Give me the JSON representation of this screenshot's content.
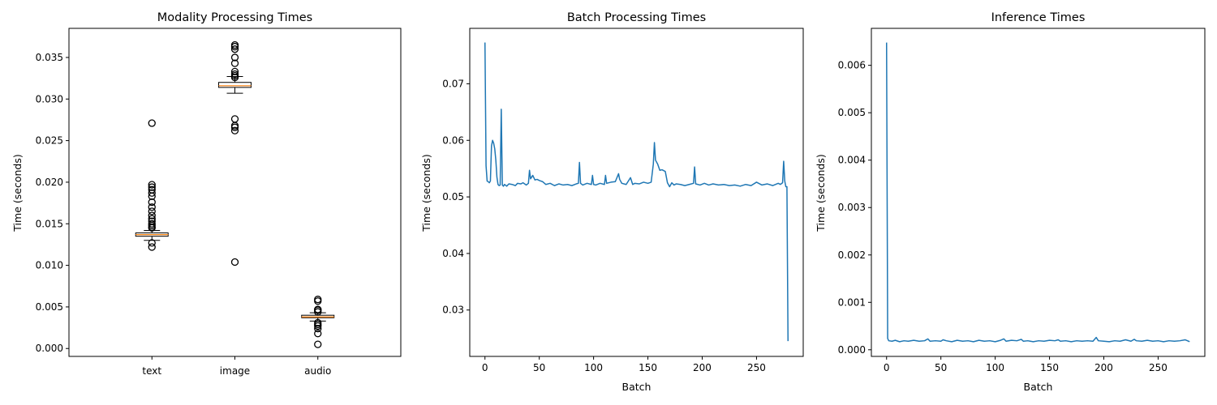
{
  "chart_data": [
    {
      "type": "boxplot",
      "title": "Modality Processing Times",
      "xlabel": "",
      "ylabel": "Time (seconds)",
      "categories": [
        "text",
        "image",
        "audio"
      ],
      "ylim": [
        -0.00095,
        0.0385
      ],
      "yticks": [
        0.0,
        0.005,
        0.01,
        0.015,
        0.02,
        0.025,
        0.03,
        0.035
      ],
      "yticklabels": [
        "0.000",
        "0.005",
        "0.010",
        "0.015",
        "0.020",
        "0.025",
        "0.030",
        "0.035"
      ],
      "boxes": [
        {
          "q1": 0.0135,
          "median": 0.0137,
          "q3": 0.0139,
          "whisker_low": 0.013,
          "whisker_high": 0.0142,
          "outliers": [
            0.0271,
            0.0197,
            0.0194,
            0.0191,
            0.0187,
            0.0183,
            0.0176,
            0.017,
            0.0165,
            0.016,
            0.0156,
            0.0153,
            0.015,
            0.0148,
            0.0146,
            0.0145,
            0.0127,
            0.0122
          ]
        },
        {
          "q1": 0.0314,
          "median": 0.0316,
          "q3": 0.032,
          "whisker_low": 0.0307,
          "whisker_high": 0.0327,
          "outliers": [
            0.0365,
            0.0363,
            0.036,
            0.035,
            0.0343,
            0.0333,
            0.033,
            0.0328,
            0.0326,
            0.0276,
            0.0268,
            0.0266,
            0.0262,
            0.0104
          ]
        },
        {
          "q1": 0.0037,
          "median": 0.0038,
          "q3": 0.004,
          "whisker_low": 0.0033,
          "whisker_high": 0.0043,
          "outliers": [
            0.0059,
            0.0057,
            0.0047,
            0.0046,
            0.0044,
            0.0031,
            0.0029,
            0.0027,
            0.0024,
            0.0018,
            0.0005
          ]
        }
      ],
      "box_color": "#ffffff",
      "median_color": "#ff7f0e"
    },
    {
      "type": "line",
      "title": "Batch Processing Times",
      "xlabel": "Batch",
      "ylabel": "Time (seconds)",
      "xlim": [
        -14,
        293
      ],
      "ylim": [
        0.0218,
        0.0798
      ],
      "xticks": [
        0,
        50,
        100,
        150,
        200,
        250
      ],
      "xticklabels": [
        "0",
        "50",
        "100",
        "150",
        "200",
        "250"
      ],
      "yticks": [
        0.03,
        0.04,
        0.05,
        0.06,
        0.07
      ],
      "yticklabels": [
        "0.03",
        "0.04",
        "0.05",
        "0.06",
        "0.07"
      ],
      "color": "#1f77b4",
      "series": [
        {
          "x": [
            0,
            1,
            2,
            3,
            4,
            5,
            6,
            7,
            8,
            9,
            10,
            11,
            12,
            13,
            14,
            15,
            16,
            17,
            18,
            20,
            22,
            25,
            28,
            30,
            33,
            35,
            38,
            40,
            41,
            42,
            44,
            46,
            48,
            50,
            53,
            56,
            60,
            64,
            68,
            72,
            76,
            80,
            84,
            86,
            87,
            88,
            90,
            94,
            98,
            99,
            100,
            102,
            106,
            110,
            111,
            112,
            116,
            120,
            123,
            124,
            126,
            130,
            134,
            136,
            138,
            142,
            146,
            150,
            153,
            155,
            156,
            157,
            159,
            161,
            163,
            166,
            168,
            170,
            172,
            174,
            176,
            180,
            184,
            188,
            192,
            193,
            194,
            198,
            202,
            206,
            210,
            215,
            220,
            225,
            230,
            235,
            240,
            245,
            250,
            255,
            260,
            265,
            270,
            272,
            274,
            275,
            276,
            277,
            278,
            279
          ],
          "y": [
            0.0773,
            0.0555,
            0.0528,
            0.0527,
            0.0525,
            0.0528,
            0.059,
            0.06,
            0.0595,
            0.0585,
            0.0565,
            0.0535,
            0.0522,
            0.052,
            0.0521,
            0.0655,
            0.0521,
            0.0519,
            0.0522,
            0.0519,
            0.0523,
            0.0522,
            0.052,
            0.0524,
            0.0523,
            0.0525,
            0.0521,
            0.0524,
            0.0547,
            0.0532,
            0.0538,
            0.053,
            0.0531,
            0.0529,
            0.0527,
            0.0522,
            0.0524,
            0.052,
            0.0523,
            0.0521,
            0.0522,
            0.052,
            0.0523,
            0.0524,
            0.0561,
            0.0524,
            0.0521,
            0.0524,
            0.0522,
            0.0538,
            0.0522,
            0.0521,
            0.0524,
            0.0522,
            0.0538,
            0.0524,
            0.0526,
            0.0527,
            0.0541,
            0.0531,
            0.0524,
            0.0522,
            0.0534,
            0.0522,
            0.0524,
            0.0523,
            0.0526,
            0.0524,
            0.0526,
            0.0558,
            0.0596,
            0.0565,
            0.0558,
            0.0547,
            0.0548,
            0.0545,
            0.0525,
            0.0518,
            0.0525,
            0.0521,
            0.0523,
            0.0522,
            0.052,
            0.0522,
            0.0524,
            0.0553,
            0.0523,
            0.0521,
            0.0524,
            0.0521,
            0.0523,
            0.0521,
            0.0522,
            0.052,
            0.0521,
            0.0519,
            0.0522,
            0.052,
            0.0526,
            0.0521,
            0.0523,
            0.052,
            0.0524,
            0.0522,
            0.0525,
            0.0563,
            0.0528,
            0.0518,
            0.0518,
            0.0245
          ]
        }
      ]
    },
    {
      "type": "line",
      "title": "Inference Times",
      "xlabel": "Batch",
      "ylabel": "Time (seconds)",
      "xlim": [
        -14,
        293
      ],
      "ylim": [
        -0.00014,
        0.00678
      ],
      "xticks": [
        0,
        50,
        100,
        150,
        200,
        250
      ],
      "xticklabels": [
        "0",
        "50",
        "100",
        "150",
        "200",
        "250"
      ],
      "yticks": [
        0.0,
        0.001,
        0.002,
        0.003,
        0.004,
        0.005,
        0.006
      ],
      "yticklabels": [
        "0.000",
        "0.001",
        "0.002",
        "0.003",
        "0.004",
        "0.005",
        "0.006"
      ],
      "color": "#1f77b4",
      "series": [
        {
          "x": [
            0,
            1,
            2,
            5,
            8,
            12,
            16,
            20,
            25,
            30,
            35,
            38,
            40,
            45,
            50,
            52,
            55,
            60,
            65,
            70,
            75,
            80,
            85,
            90,
            95,
            100,
            105,
            108,
            110,
            115,
            120,
            124,
            126,
            130,
            135,
            140,
            145,
            150,
            155,
            158,
            160,
            165,
            170,
            175,
            180,
            185,
            190,
            193,
            195,
            200,
            205,
            210,
            215,
            220,
            225,
            228,
            230,
            235,
            240,
            245,
            250,
            255,
            260,
            265,
            270,
            275,
            279
          ],
          "y": [
            0.00648,
            0.00024,
            0.00019,
            0.00018,
            0.0002,
            0.00017,
            0.00019,
            0.00018,
            0.0002,
            0.00018,
            0.00019,
            0.00023,
            0.00018,
            0.00019,
            0.00018,
            0.00021,
            0.00019,
            0.00017,
            0.0002,
            0.00018,
            0.00019,
            0.00017,
            0.0002,
            0.00018,
            0.00019,
            0.00017,
            0.0002,
            0.00023,
            0.00018,
            0.0002,
            0.00019,
            0.00022,
            0.00018,
            0.00019,
            0.00017,
            0.00019,
            0.00018,
            0.0002,
            0.00019,
            0.00021,
            0.00018,
            0.00019,
            0.00017,
            0.00019,
            0.00018,
            0.00019,
            0.00018,
            0.00026,
            0.00019,
            0.00018,
            0.00017,
            0.00019,
            0.00018,
            0.00021,
            0.00018,
            0.00022,
            0.00019,
            0.00018,
            0.0002,
            0.00018,
            0.00019,
            0.00017,
            0.00019,
            0.00018,
            0.00019,
            0.00021,
            0.00017
          ]
        }
      ]
    }
  ]
}
